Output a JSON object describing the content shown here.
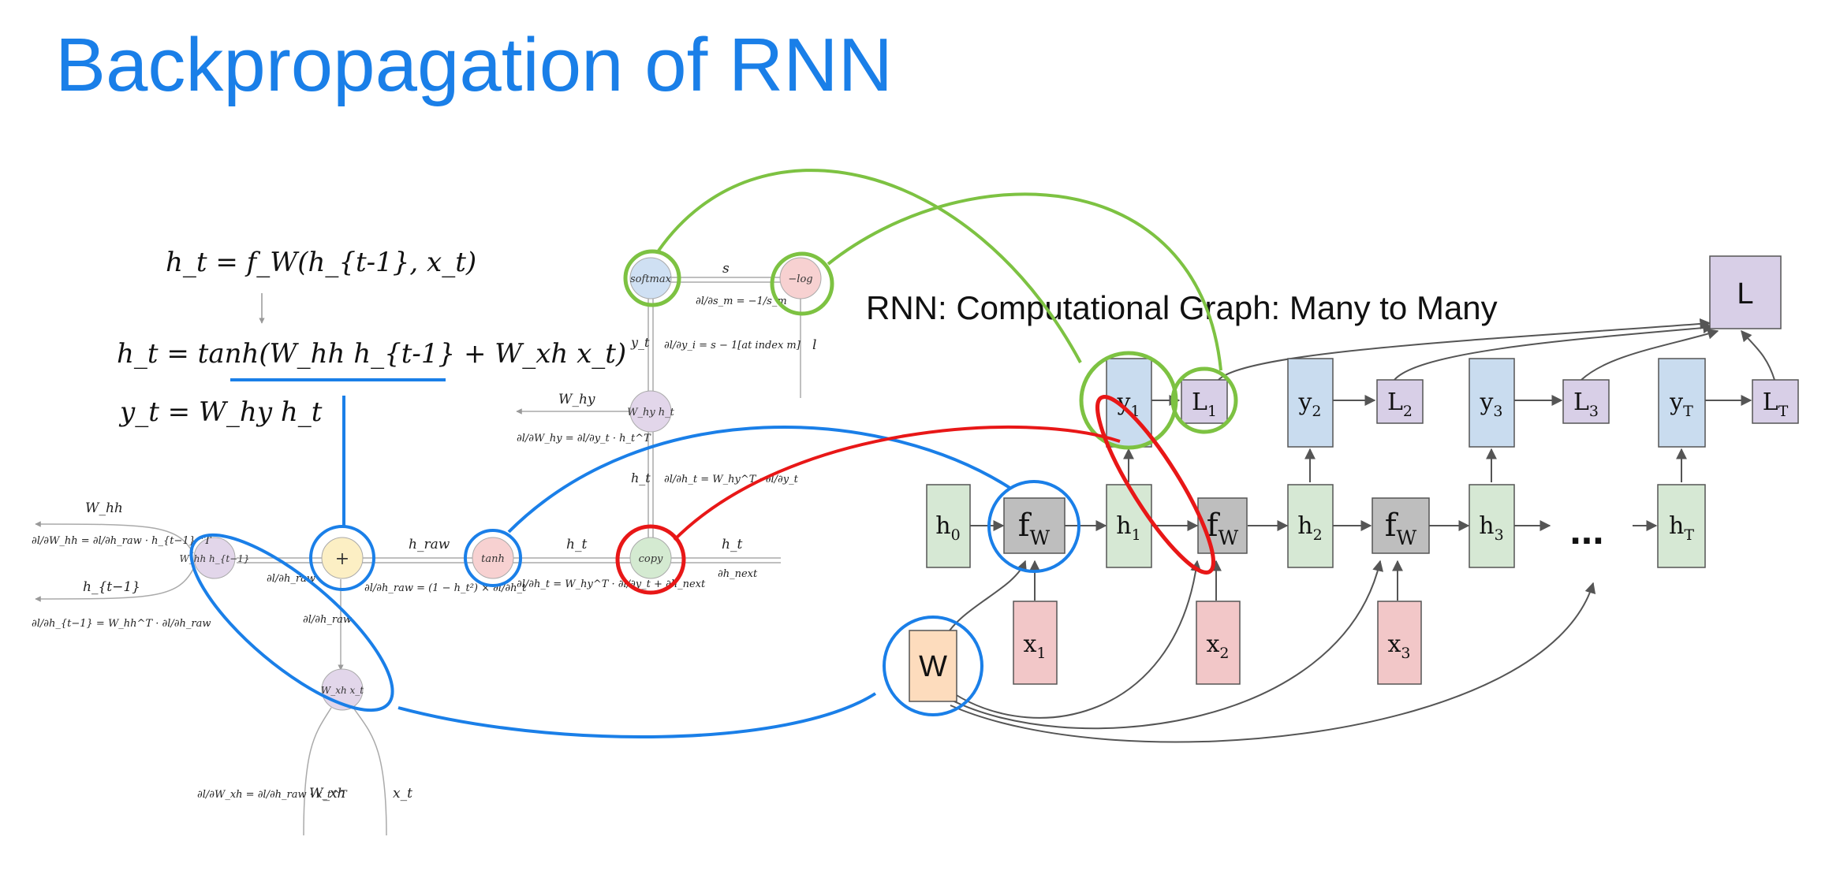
{
  "title": "Backpropagation of RNN",
  "equations": {
    "eq1": "h_t = f_W(h_{t-1}, x_t)",
    "eq2": "h_t = tanh(W_hh h_{t-1} + W_xh x_t)",
    "eq3": "y_t = W_hy h_t"
  },
  "graph_left": {
    "nodes": {
      "softmax": "softmax",
      "neglog": "−log",
      "why_ht": "W_hy h_t",
      "copy": "copy",
      "tanh": "tanh",
      "plus": "+",
      "whh_ht1": "W_hh h_{t−1}",
      "wxh_xt": "W_xh x_t"
    },
    "edge_labels": {
      "s": "s",
      "yt": "y_t",
      "l": "l",
      "why": "W_hy",
      "ht_vertical": "h_t",
      "hraw": "h_raw",
      "ht_mid": "h_t",
      "ht_right": "h_t",
      "whh": "W_hh",
      "ht_minus1": "h_{t−1}",
      "wxh": "W_xh",
      "xt": "x_t"
    },
    "gradients": {
      "d_s": "∂l/∂s_m = −1/s_m",
      "d_y": "∂l/∂y_i = s − 1[at index m]",
      "d_why": "∂l/∂W_hy = ∂l/∂y_t · h_t^T",
      "d_ht_vertical": "∂l/∂h_t = W_hy^T · ∂l/∂y_t",
      "d_hnext": "∂h_next",
      "d_ht_sum": "∂l/∂h_t = W_hy^T · ∂l/∂y_t + ∂h_next",
      "d_hraw_tanh": "∂l/∂h_raw = (1 − h_t²) × ∂l/∂h_t",
      "d_hraw_plus": "∂l/∂h_raw",
      "d_hraw_down": "∂l/∂h_raw",
      "d_whh": "∂l/∂W_hh = ∂l/∂h_raw · h_{t−1}^T",
      "d_ht1": "∂l/∂h_{t−1} = W_hh^T · ∂l/∂h_raw",
      "d_wxh": "∂l/∂W_xh = ∂l/∂h_raw · x_t^T"
    }
  },
  "graph_right": {
    "heading": "RNN: Computational Graph: Many to Many",
    "loss": "L",
    "h": [
      "h0",
      "h1",
      "h2",
      "h3",
      "hT"
    ],
    "f": [
      "fW",
      "fW",
      "fW"
    ],
    "x": [
      "x1",
      "x2",
      "x3"
    ],
    "y": [
      "y1",
      "y2",
      "y3",
      "yT"
    ],
    "losses": [
      "L1",
      "L2",
      "L3",
      "LT"
    ],
    "weight": "W",
    "ellipsis": "..."
  },
  "colors": {
    "title": "#1a7fe8",
    "blue_highlight": "#1a7fe8",
    "green_highlight": "#7dc242",
    "red_highlight": "#e81717",
    "h_box": "#d6e8d4",
    "f_box": "#bebebe",
    "x_box": "#f2c7c8",
    "y_box": "#c9dcef",
    "loss_box": "#d8cfe7",
    "w_box": "#fddcbd"
  }
}
